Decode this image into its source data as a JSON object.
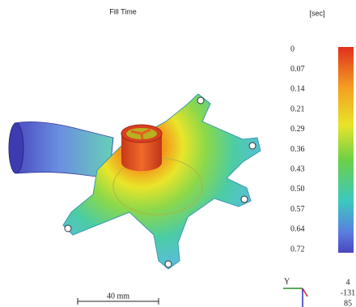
{
  "header": {
    "title": "Fill Time",
    "unit": "[sec]"
  },
  "legend": {
    "labels": [
      "0",
      "0.07",
      "0.14",
      "0.21",
      "0.29",
      "0.36",
      "0.43",
      "0.50",
      "0.57",
      "0.64",
      "0.72"
    ]
  },
  "scale_bar": {
    "label": "40 mm"
  },
  "triad": {
    "axis": "Y",
    "coords": [
      "4",
      "-131",
      "85"
    ]
  }
}
